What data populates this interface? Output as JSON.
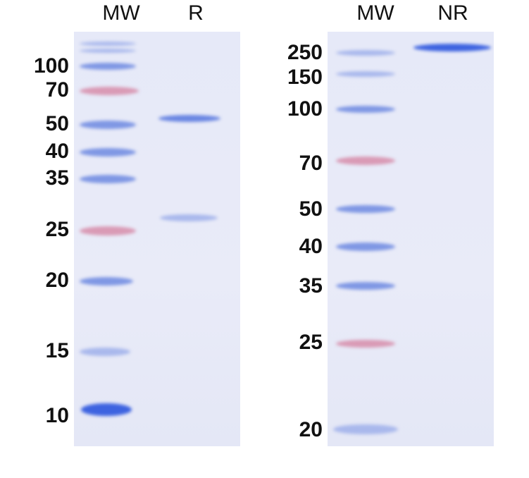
{
  "left_panel": {
    "lanes": [
      "MW",
      "R"
    ],
    "markers": [
      "100",
      "70",
      "50",
      "40",
      "35",
      "25",
      "20",
      "15",
      "10"
    ]
  },
  "right_panel": {
    "lanes": [
      "MW",
      "NR"
    ],
    "markers": [
      "250",
      "150",
      "100",
      "70",
      "50",
      "40",
      "35",
      "25",
      "20"
    ]
  },
  "colors": {
    "ladder_blue": "#7f97e4",
    "ladder_pink": "#d99ab5",
    "sample_band": "#3d63e0",
    "gel_background": "#e7eaf8"
  }
}
